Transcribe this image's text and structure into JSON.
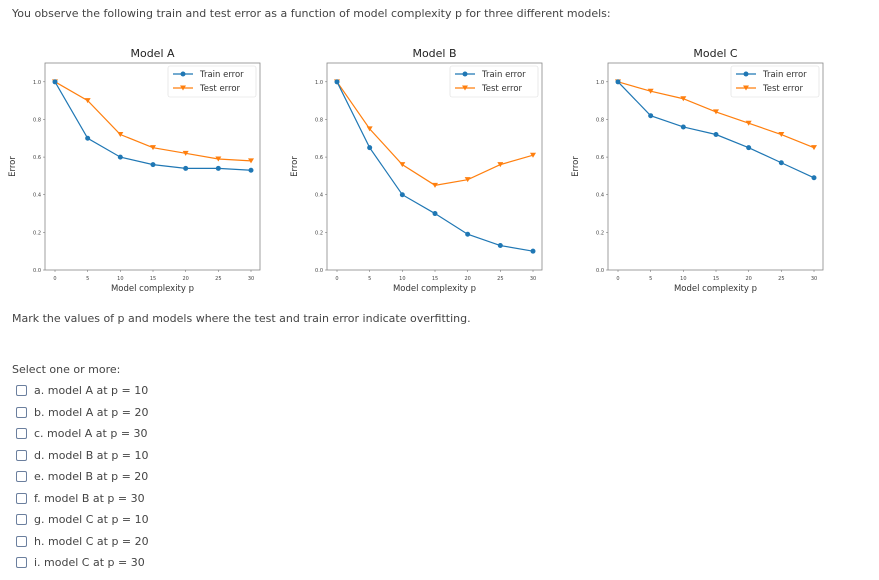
{
  "question": "You observe the following train and test error as a function of model complexity p for three different models:",
  "instruction": "Mark the values of p and models where the test and train error indicate overfitting.",
  "select_label": "Select one or more:",
  "options": [
    "a. model A at p = 10",
    "b. model A at p = 20",
    "c. model A at p = 30",
    "d. model B at p = 10",
    "e. model B at p = 20",
    "f. model B at p = 30",
    "g. model C at p = 10",
    "h. model C at p = 20",
    "i. model C at p = 30"
  ],
  "colors": {
    "train": "#1f77b4",
    "test": "#ff7f0e"
  },
  "chart_data": [
    {
      "type": "line",
      "title": "Model A",
      "xlabel": "Model complexity p",
      "ylabel": "Error",
      "x": [
        0,
        5,
        10,
        15,
        20,
        25,
        30
      ],
      "xticks": [
        "0",
        "5",
        "10",
        "15",
        "20",
        "25",
        "30"
      ],
      "yticks": [
        "0.0",
        "0.2",
        "0.4",
        "0.6",
        "0.8",
        "1.0"
      ],
      "ylim": [
        0,
        1.1
      ],
      "legend": "top-right",
      "series": [
        {
          "name": "Train error",
          "values": [
            1.0,
            0.7,
            0.6,
            0.56,
            0.54,
            0.54,
            0.53
          ]
        },
        {
          "name": "Test error",
          "values": [
            1.0,
            0.9,
            0.72,
            0.65,
            0.62,
            0.59,
            0.58
          ]
        }
      ]
    },
    {
      "type": "line",
      "title": "Model B",
      "xlabel": "Model complexity p",
      "ylabel": "Error",
      "x": [
        0,
        5,
        10,
        15,
        20,
        25,
        30
      ],
      "xticks": [
        "0",
        "5",
        "10",
        "15",
        "20",
        "25",
        "30"
      ],
      "yticks": [
        "0.0",
        "0.2",
        "0.4",
        "0.6",
        "0.8",
        "1.0"
      ],
      "ylim": [
        0,
        1.1
      ],
      "legend": "top-right",
      "series": [
        {
          "name": "Train error",
          "values": [
            1.0,
            0.65,
            0.4,
            0.3,
            0.19,
            0.13,
            0.1
          ]
        },
        {
          "name": "Test error",
          "values": [
            1.0,
            0.75,
            0.56,
            0.45,
            0.48,
            0.56,
            0.61
          ]
        }
      ]
    },
    {
      "type": "line",
      "title": "Model C",
      "xlabel": "Model complexity p",
      "ylabel": "Error",
      "x": [
        0,
        5,
        10,
        15,
        20,
        25,
        30
      ],
      "xticks": [
        "0",
        "5",
        "10",
        "15",
        "20",
        "25",
        "30"
      ],
      "yticks": [
        "0.0",
        "0.2",
        "0.4",
        "0.6",
        "0.8",
        "1.0"
      ],
      "ylim": [
        0,
        1.1
      ],
      "legend": "top-right",
      "series": [
        {
          "name": "Train error",
          "values": [
            1.0,
            0.82,
            0.76,
            0.72,
            0.65,
            0.57,
            0.49
          ]
        },
        {
          "name": "Test error",
          "values": [
            1.0,
            0.95,
            0.91,
            0.84,
            0.78,
            0.72,
            0.65
          ]
        }
      ]
    }
  ]
}
